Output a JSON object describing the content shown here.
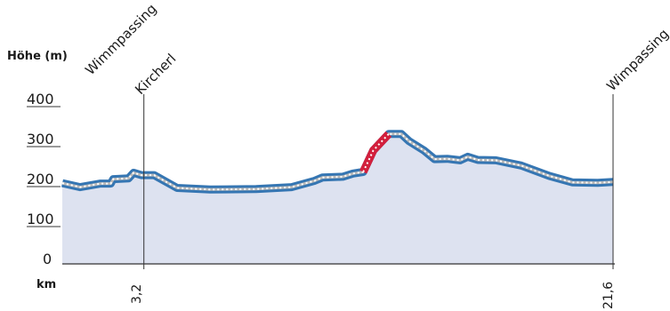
{
  "chart_data": {
    "type": "area",
    "ylabel": "Höhe (m)",
    "xlabel": "km",
    "ylim": [
      0,
      400
    ],
    "xlim": [
      0,
      21.6
    ],
    "y_ticks": [
      "400",
      "300",
      "200",
      "100",
      "0"
    ],
    "x_ticks": [
      "3,2",
      "21,6"
    ],
    "x_tick_values": [
      3.2,
      21.6
    ],
    "places": [
      {
        "name": "Wimmpassing",
        "km": 0
      },
      {
        "name": "Kircherl",
        "km": 3.2
      },
      {
        "name": "Wimpassing",
        "km": 21.6
      }
    ],
    "profile": [
      {
        "x": 0.0,
        "y": 202
      },
      {
        "x": 0.7,
        "y": 192
      },
      {
        "x": 1.5,
        "y": 201
      },
      {
        "x": 1.9,
        "y": 201
      },
      {
        "x": 2.0,
        "y": 212
      },
      {
        "x": 2.6,
        "y": 214
      },
      {
        "x": 2.8,
        "y": 228
      },
      {
        "x": 3.1,
        "y": 222
      },
      {
        "x": 3.6,
        "y": 222
      },
      {
        "x": 4.5,
        "y": 190
      },
      {
        "x": 5.8,
        "y": 186
      },
      {
        "x": 7.6,
        "y": 187
      },
      {
        "x": 9.0,
        "y": 192
      },
      {
        "x": 9.9,
        "y": 208
      },
      {
        "x": 10.2,
        "y": 216
      },
      {
        "x": 11.0,
        "y": 218
      },
      {
        "x": 11.4,
        "y": 226
      },
      {
        "x": 11.8,
        "y": 230
      },
      {
        "x": 12.2,
        "y": 284
      },
      {
        "x": 12.8,
        "y": 325
      },
      {
        "x": 13.3,
        "y": 325
      },
      {
        "x": 13.6,
        "y": 307
      },
      {
        "x": 14.2,
        "y": 283
      },
      {
        "x": 14.6,
        "y": 262
      },
      {
        "x": 15.1,
        "y": 263
      },
      {
        "x": 15.6,
        "y": 259
      },
      {
        "x": 15.9,
        "y": 268
      },
      {
        "x": 16.3,
        "y": 260
      },
      {
        "x": 17.0,
        "y": 259
      },
      {
        "x": 18.0,
        "y": 246
      },
      {
        "x": 19.1,
        "y": 220
      },
      {
        "x": 20.0,
        "y": 204
      },
      {
        "x": 21.0,
        "y": 203
      },
      {
        "x": 21.6,
        "y": 205
      }
    ],
    "steep_section": [
      11.8,
      12.8
    ],
    "grid": false,
    "colors": {
      "fill": "#dde2f0",
      "route": "#3576b3",
      "route_center": "#b8b8b8",
      "steep": "#d21f3c",
      "axis": "#333333"
    }
  }
}
